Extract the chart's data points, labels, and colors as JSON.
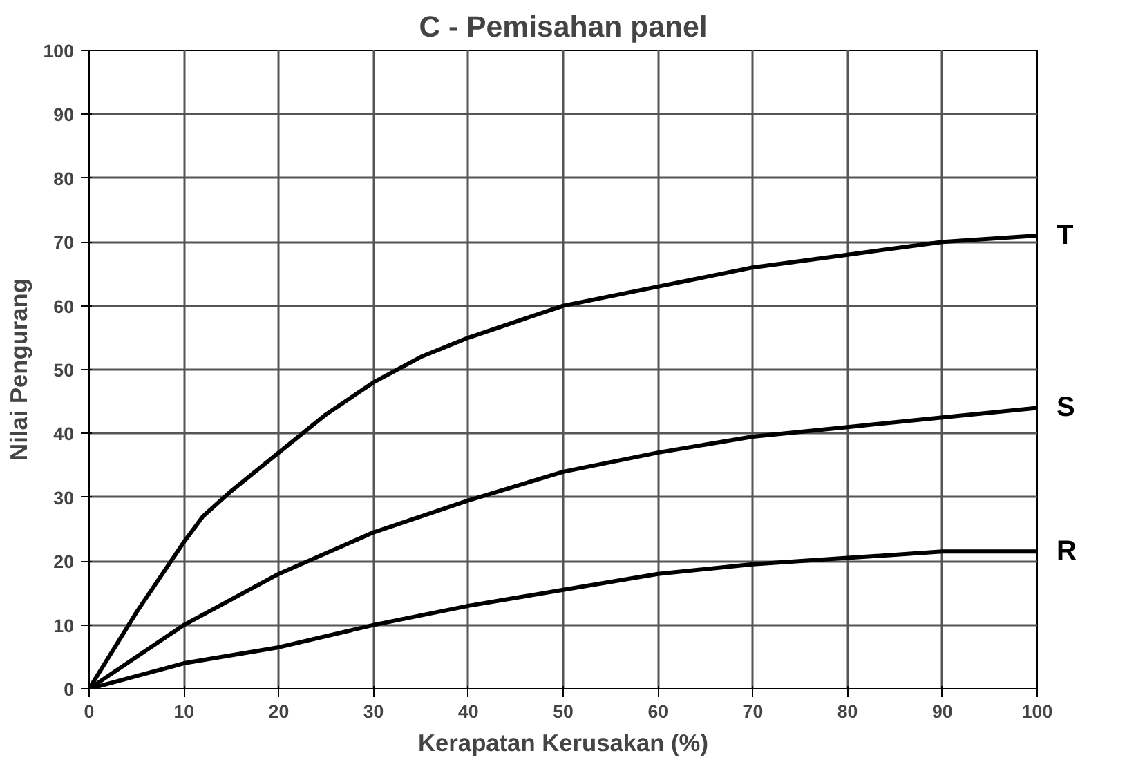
{
  "chart_data": {
    "type": "line",
    "title": "C - Pemisahan panel",
    "xlabel": "Kerapatan Kerusakan (%)",
    "ylabel": "Nilai Pengurang",
    "x": [
      0,
      5,
      10,
      12,
      15,
      20,
      25,
      30,
      35,
      40,
      50,
      60,
      70,
      80,
      90,
      100
    ],
    "series": [
      {
        "name": "T",
        "color": "#000000",
        "values": [
          0,
          12,
          23,
          27,
          31,
          37,
          43,
          48,
          52,
          55,
          60,
          63,
          66,
          68,
          70,
          71
        ]
      },
      {
        "name": "S",
        "color": "#000000",
        "x": [
          0,
          10,
          20,
          30,
          40,
          50,
          60,
          70,
          80,
          90,
          100
        ],
        "values": [
          0,
          10,
          18,
          24.5,
          29.5,
          34,
          37,
          39.5,
          41,
          42.5,
          44
        ]
      },
      {
        "name": "R",
        "color": "#000000",
        "x": [
          0,
          10,
          20,
          30,
          40,
          50,
          60,
          70,
          80,
          90,
          100
        ],
        "values": [
          0,
          4,
          6.5,
          10,
          13,
          15.5,
          18,
          19.5,
          20.5,
          21.5,
          21.5
        ]
      }
    ],
    "xlim": [
      0,
      100
    ],
    "ylim": [
      0,
      100
    ],
    "xticks": [
      0,
      10,
      20,
      30,
      40,
      50,
      60,
      70,
      80,
      90,
      100
    ],
    "yticks": [
      0,
      10,
      20,
      30,
      40,
      50,
      60,
      70,
      80,
      90,
      100
    ],
    "grid": true,
    "marker": "none",
    "line_style": "solid"
  }
}
